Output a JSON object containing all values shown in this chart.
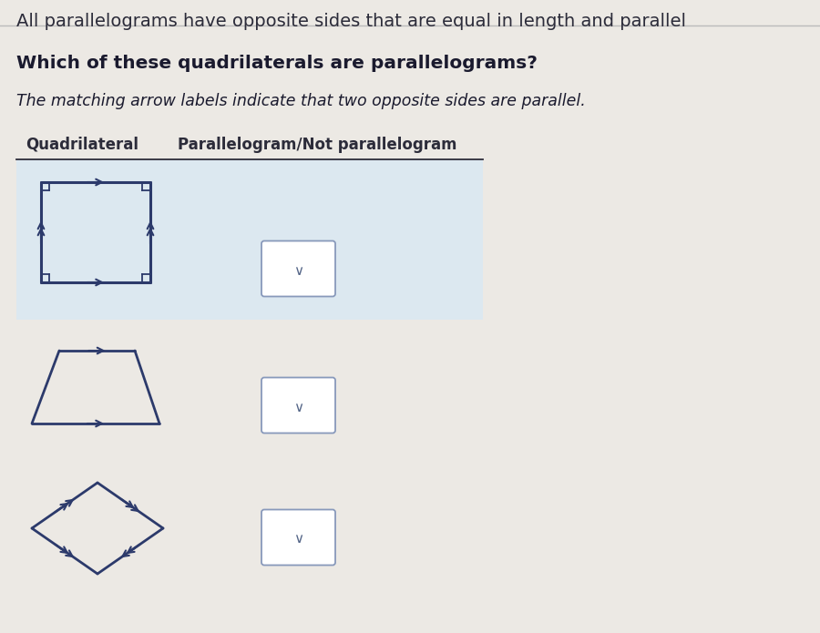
{
  "bg_color": "#ece9e4",
  "highlight_color": "#dce8f0",
  "text_color": "#2c2c3a",
  "line_color": "#2c3a6b",
  "title_line1": "All parallelograms have opposite sides that are equal in length and parallel",
  "title_line2": "Which of these quadrilaterals are parallelograms?",
  "subtitle": "The matching arrow labels indicate that two opposite sides are parallel.",
  "col1_label": "Quadrilateral",
  "col2_label": "Parallelogram/Not parallelogram"
}
